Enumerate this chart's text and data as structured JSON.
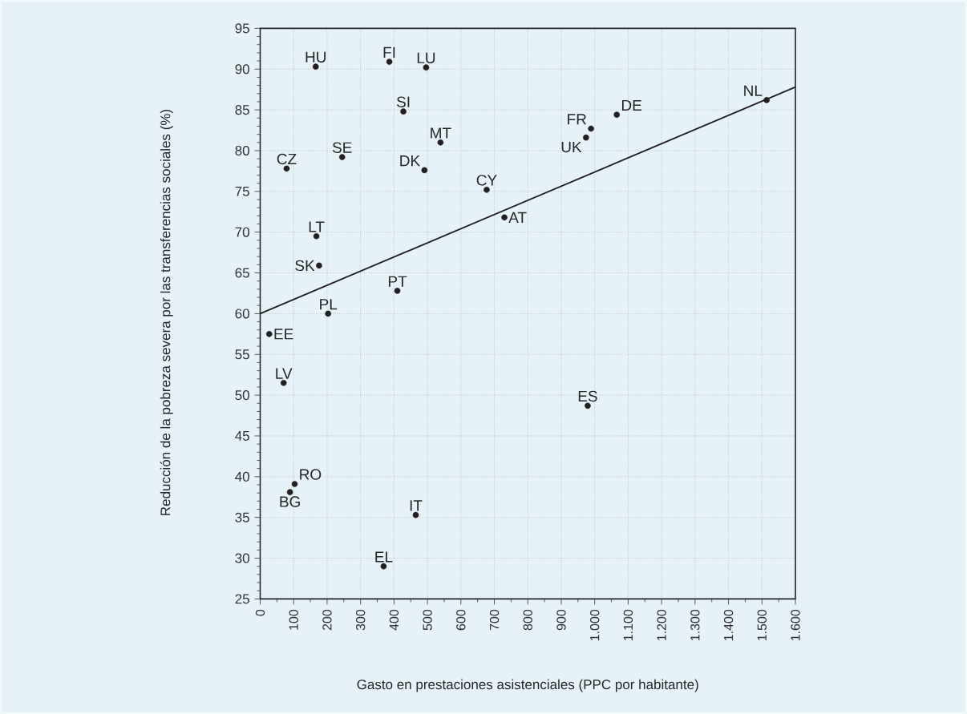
{
  "chart_data": {
    "type": "scatter",
    "xlabel": "Gasto en prestaciones asistenciales (PPC por habitante)",
    "ylabel": "Reducción de la pobreza severa por las transferencias sociales (%)",
    "grid": true,
    "xlim": [
      0,
      1600
    ],
    "ylim": [
      25,
      95
    ],
    "xticks": [
      0,
      100,
      200,
      300,
      400,
      500,
      600,
      700,
      800,
      900,
      {
        "value": 1000,
        "label": "1.000"
      },
      {
        "value": 1100,
        "label": "1.100"
      },
      {
        "value": 1200,
        "label": "1.200"
      },
      {
        "value": 1300,
        "label": "1.300"
      },
      {
        "value": 1400,
        "label": "1.400"
      },
      {
        "value": 1500,
        "label": "1.500"
      },
      {
        "value": 1600,
        "label": "1.600"
      }
    ],
    "yticks": [
      25,
      30,
      35,
      40,
      45,
      50,
      55,
      60,
      65,
      70,
      75,
      80,
      85,
      90,
      95
    ],
    "series": [
      {
        "marker": "circle",
        "color": "#231f20",
        "x": [
          166,
          386,
          496,
          428,
          539,
          491,
          79,
          245,
          677,
          730,
          989,
          974,
          1066,
          1514,
          168,
          176,
          410,
          203,
          27,
          70,
          979,
          103,
          89,
          465,
          369
        ],
        "values": [
          90.3,
          90.9,
          90.2,
          84.8,
          81.0,
          77.6,
          77.8,
          79.2,
          75.2,
          71.8,
          82.7,
          81.6,
          84.4,
          86.2,
          69.5,
          65.9,
          62.8,
          60.0,
          57.5,
          51.5,
          48.7,
          39.1,
          38.1,
          35.3,
          29.0
        ]
      },
      {
        "type": "line",
        "marker": "none",
        "color": "#231f20",
        "x": [
          0,
          1600
        ],
        "values": [
          60,
          87.8
        ]
      }
    ],
    "annotations": [
      {
        "text": "HU",
        "x": 166,
        "y": 90.3
      },
      {
        "text": "FI",
        "x": 386,
        "y": 90.9
      },
      {
        "text": "LU",
        "x": 496,
        "y": 90.2
      },
      {
        "text": "SI",
        "x": 428,
        "y": 84.8
      },
      {
        "text": "MT",
        "x": 539,
        "y": 81.0
      },
      {
        "text": "DK",
        "x": 491,
        "y": 77.6
      },
      {
        "text": "CZ",
        "x": 79,
        "y": 77.8
      },
      {
        "text": "SE",
        "x": 245,
        "y": 79.2
      },
      {
        "text": "CY",
        "x": 677,
        "y": 75.2
      },
      {
        "text": "AT",
        "x": 730,
        "y": 71.8
      },
      {
        "text": "FR",
        "x": 989,
        "y": 82.7
      },
      {
        "text": "UK",
        "x": 974,
        "y": 81.6
      },
      {
        "text": "DE",
        "x": 1066,
        "y": 84.4
      },
      {
        "text": "NL",
        "x": 1514,
        "y": 86.2
      },
      {
        "text": "LT",
        "x": 168,
        "y": 69.5
      },
      {
        "text": "SK",
        "x": 176,
        "y": 65.9
      },
      {
        "text": "PT",
        "x": 410,
        "y": 62.8
      },
      {
        "text": "PL",
        "x": 203,
        "y": 60.0
      },
      {
        "text": "EE",
        "x": 27,
        "y": 57.5
      },
      {
        "text": "LV",
        "x": 70,
        "y": 51.5
      },
      {
        "text": "ES",
        "x": 979,
        "y": 48.7
      },
      {
        "text": "RO",
        "x": 103,
        "y": 39.1
      },
      {
        "text": "BG",
        "x": 89,
        "y": 38.1
      },
      {
        "text": "IT",
        "x": 465,
        "y": 35.3
      },
      {
        "text": "EL",
        "x": 369,
        "y": 29.0
      }
    ]
  }
}
